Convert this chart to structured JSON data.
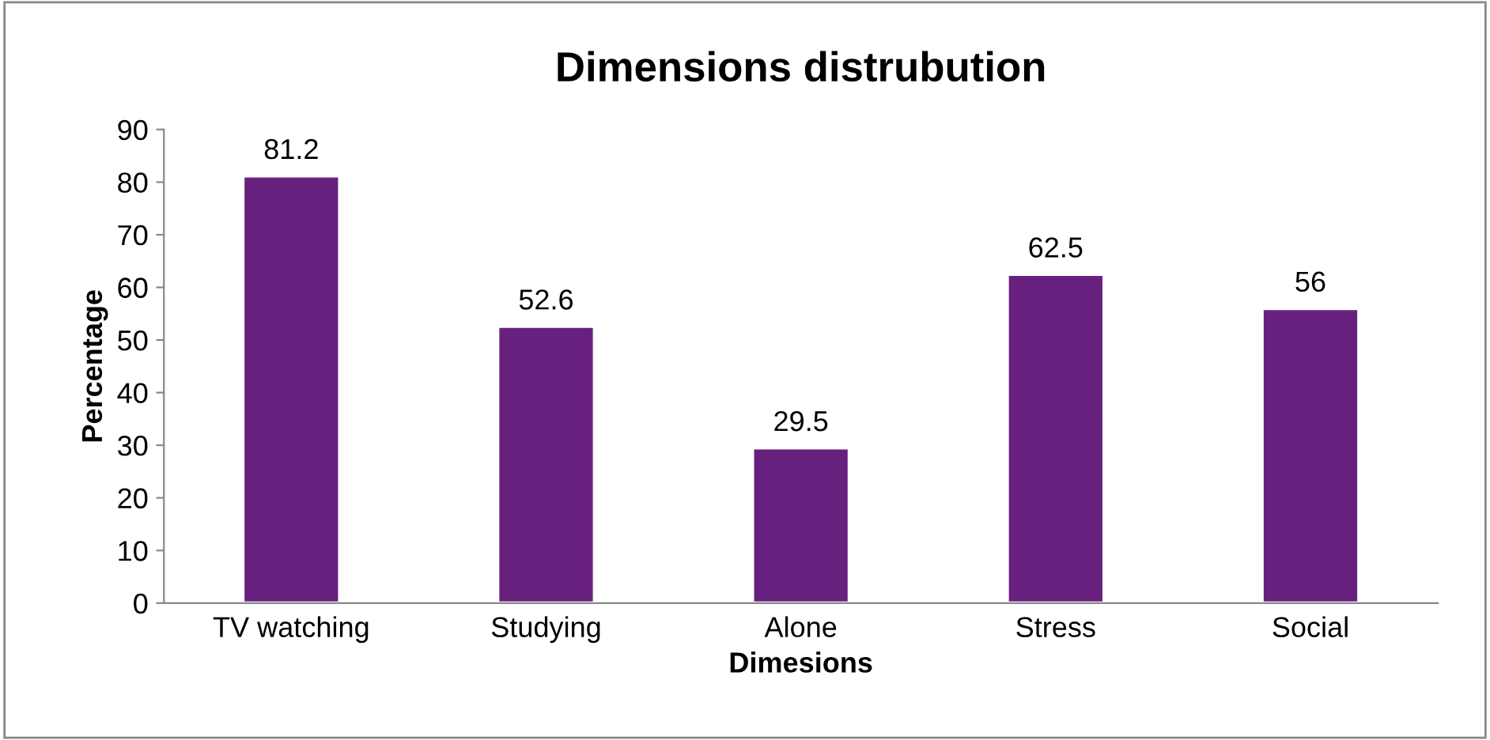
{
  "chart_data": {
    "type": "bar",
    "title": "Dimensions distrubution",
    "xlabel": "Dimesions",
    "ylabel": "Percentage",
    "categories": [
      "TV watching",
      "Studying",
      "Alone",
      "Stress",
      "Social"
    ],
    "values": [
      81.2,
      52.6,
      29.5,
      62.5,
      56
    ],
    "color": "#68207f",
    "ylim": [
      0,
      90
    ],
    "yticks": [
      0,
      10,
      20,
      30,
      40,
      50,
      60,
      70,
      80,
      90
    ],
    "grid": false,
    "data_labels": true
  }
}
